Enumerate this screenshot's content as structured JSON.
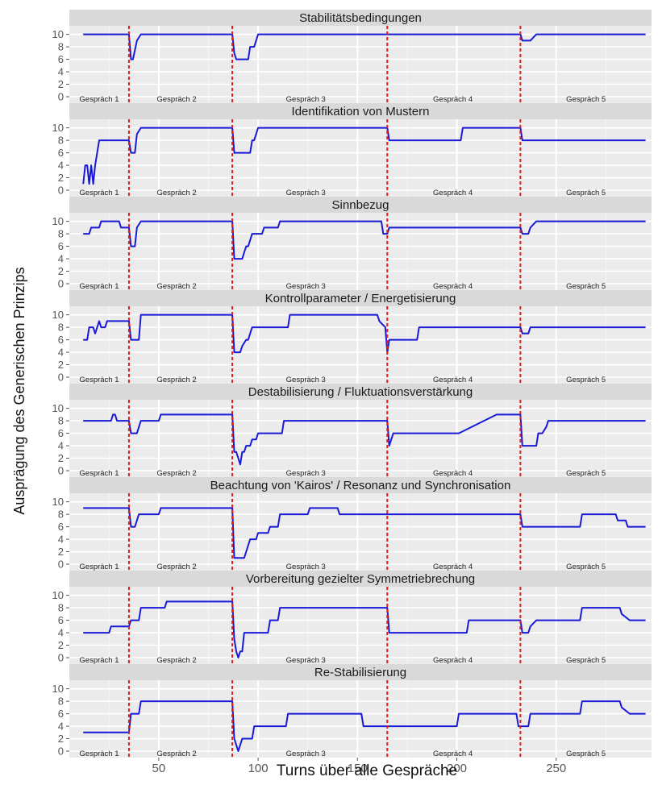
{
  "chart_data": {
    "type": "line",
    "xlabel": "Turns über alle Gespräche",
    "ylabel": "Ausprägung des Generischen Prinzips",
    "xlim": [
      5,
      298
    ],
    "ylim": [
      0,
      10.6
    ],
    "x_ticks": [
      50,
      100,
      150,
      200,
      250
    ],
    "y_ticks": [
      0,
      2,
      4,
      6,
      8,
      10
    ],
    "grid": true,
    "line_color": "#1a1ad6",
    "separator_color": "#e31a1c",
    "panel_bg": "#ebebeb",
    "strip_bg": "#d9d9d9",
    "separators": [
      35,
      87,
      165,
      232
    ],
    "conversation_labels": [
      {
        "label": "Gespräch 1",
        "x": 20
      },
      {
        "label": "Gespräch 2",
        "x": 59
      },
      {
        "label": "Gespräch 3",
        "x": 124
      },
      {
        "label": "Gespräch 4",
        "x": 198
      },
      {
        "label": "Gespräch 5",
        "x": 265
      }
    ],
    "series": [
      {
        "name": "Stabilitätsbedingungen",
        "x": [
          12,
          35,
          36,
          37,
          39,
          41,
          87,
          88,
          89,
          90,
          91,
          95,
          96,
          98,
          100,
          165,
          166,
          169,
          172,
          232,
          233,
          236,
          237,
          240,
          295
        ],
        "y": [
          10,
          10,
          6,
          6,
          9,
          10,
          10,
          7,
          6,
          6,
          6,
          6,
          8,
          8,
          10,
          10,
          10,
          10,
          10,
          10,
          9,
          9,
          9,
          10,
          10
        ]
      },
      {
        "name": "Identifikation von Mustern",
        "x": [
          12,
          13,
          14,
          15,
          16,
          17,
          18,
          20,
          35,
          36,
          38,
          39,
          41,
          50,
          87,
          88,
          89,
          92,
          96,
          97,
          98,
          100,
          165,
          166,
          168,
          202,
          203,
          216,
          217,
          230,
          232,
          233,
          236,
          238,
          295
        ],
        "y": [
          1,
          4,
          4,
          1,
          4,
          1,
          4,
          8,
          8,
          6,
          6,
          9,
          10,
          10,
          10,
          6,
          6,
          6,
          6,
          8,
          8,
          10,
          10,
          8,
          8,
          8,
          10,
          10,
          10,
          10,
          10,
          8,
          8,
          8,
          8
        ]
      },
      {
        "name": "Sinnbezug",
        "x": [
          12,
          15,
          16,
          20,
          21,
          25,
          26,
          30,
          31,
          35,
          36,
          38,
          39,
          41,
          87,
          88,
          89,
          92,
          93,
          94,
          95,
          97,
          98,
          102,
          103,
          107,
          108,
          110,
          111,
          115,
          116,
          162,
          163,
          165,
          166,
          169,
          172,
          230,
          232,
          233,
          236,
          237,
          240,
          295
        ],
        "y": [
          8,
          8,
          9,
          9,
          10,
          10,
          10,
          10,
          9,
          9,
          6,
          6,
          9,
          10,
          10,
          4,
          4,
          4,
          5,
          6,
          6,
          8,
          8,
          8,
          9,
          9,
          9,
          9,
          10,
          10,
          10,
          10,
          8,
          8,
          9,
          9,
          9,
          9,
          9,
          8,
          8,
          9,
          10,
          10
        ]
      },
      {
        "name": "Kontrollparameter / Energetisierung",
        "x": [
          12,
          14,
          15,
          17,
          18,
          20,
          21,
          23,
          24,
          27,
          28,
          35,
          36,
          38,
          40,
          41,
          87,
          88,
          89,
          91,
          92,
          94,
          95,
          96,
          97,
          100,
          101,
          115,
          116,
          160,
          161,
          164,
          165,
          166,
          168,
          169,
          172,
          173,
          180,
          181,
          232,
          233,
          236,
          237,
          295
        ],
        "y": [
          6,
          6,
          8,
          8,
          7,
          9,
          8,
          8,
          9,
          9,
          9,
          9,
          6,
          6,
          6,
          10,
          10,
          4,
          4,
          4,
          5,
          6,
          6,
          7,
          8,
          8,
          8,
          8,
          10,
          10,
          9,
          8,
          4,
          6,
          6,
          6,
          6,
          6,
          6,
          8,
          8,
          7,
          7,
          8,
          8
        ]
      },
      {
        "name": "Destabilisierung / Fluktuationsverstärkung",
        "x": [
          12,
          26,
          27,
          28,
          29,
          35,
          36,
          38,
          39,
          41,
          50,
          51,
          87,
          88,
          89,
          90,
          91,
          92,
          93,
          94,
          95,
          96,
          97,
          99,
          100,
          112,
          113,
          165,
          166,
          168,
          200,
          201,
          220,
          221,
          232,
          233,
          236,
          240,
          241,
          243,
          245,
          246,
          295
        ],
        "y": [
          8,
          8,
          9,
          9,
          8,
          8,
          6,
          6,
          6,
          8,
          8,
          9,
          9,
          3,
          3,
          2,
          1,
          3,
          3,
          4,
          4,
          4,
          5,
          5,
          6,
          6,
          8,
          8,
          4,
          6,
          6,
          6,
          9,
          9,
          9,
          4,
          4,
          4,
          6,
          6,
          7,
          8,
          8
        ]
      },
      {
        "name": "Beachtung von 'Kairos' / Resonanz und Synchronisation",
        "x": [
          12,
          35,
          36,
          38,
          39,
          40,
          41,
          50,
          51,
          87,
          88,
          89,
          92,
          93,
          94,
          96,
          97,
          99,
          100,
          101,
          105,
          106,
          110,
          111,
          125,
          126,
          140,
          141,
          165,
          166,
          168,
          175,
          176,
          232,
          233,
          236,
          240,
          262,
          263,
          280,
          281,
          285,
          286,
          295
        ],
        "y": [
          9,
          9,
          6,
          6,
          7,
          8,
          8,
          8,
          9,
          9,
          1,
          1,
          1,
          1,
          2,
          4,
          4,
          4,
          5,
          5,
          5,
          6,
          6,
          8,
          8,
          9,
          9,
          8,
          8,
          8,
          8,
          8,
          8,
          8,
          6,
          6,
          6,
          6,
          8,
          8,
          7,
          7,
          6,
          6
        ]
      },
      {
        "name": "Vorbereitung gezielter Symmetriebrechung",
        "x": [
          12,
          25,
          26,
          30,
          31,
          35,
          36,
          38,
          40,
          41,
          53,
          54,
          87,
          88,
          89,
          90,
          91,
          92,
          93,
          99,
          105,
          106,
          110,
          111,
          165,
          166,
          168,
          205,
          206,
          215,
          216,
          231,
          232,
          233,
          236,
          237,
          240,
          262,
          263,
          282,
          283,
          287,
          295
        ],
        "y": [
          4,
          4,
          5,
          5,
          5,
          5,
          6,
          6,
          6,
          8,
          8,
          9,
          9,
          3,
          1,
          0,
          1,
          1,
          4,
          4,
          4,
          6,
          6,
          8,
          8,
          4,
          4,
          4,
          6,
          6,
          6,
          6,
          6,
          4,
          4,
          5,
          6,
          6,
          8,
          8,
          7,
          6,
          6
        ]
      },
      {
        "name": "Re-Stabilisierung",
        "x": [
          12,
          35,
          36,
          38,
          40,
          41,
          87,
          88,
          89,
          90,
          91,
          92,
          93,
          97,
          98,
          100,
          101,
          114,
          115,
          152,
          153,
          200,
          201,
          216,
          217,
          230,
          231,
          233,
          236,
          237,
          240,
          262,
          263,
          282,
          283,
          287,
          295
        ],
        "y": [
          3,
          3,
          6,
          6,
          6,
          8,
          8,
          2,
          1,
          0,
          1,
          2,
          2,
          2,
          4,
          4,
          4,
          4,
          6,
          6,
          4,
          4,
          6,
          6,
          6,
          6,
          4,
          4,
          4,
          6,
          6,
          6,
          8,
          8,
          7,
          6,
          6
        ]
      }
    ]
  }
}
